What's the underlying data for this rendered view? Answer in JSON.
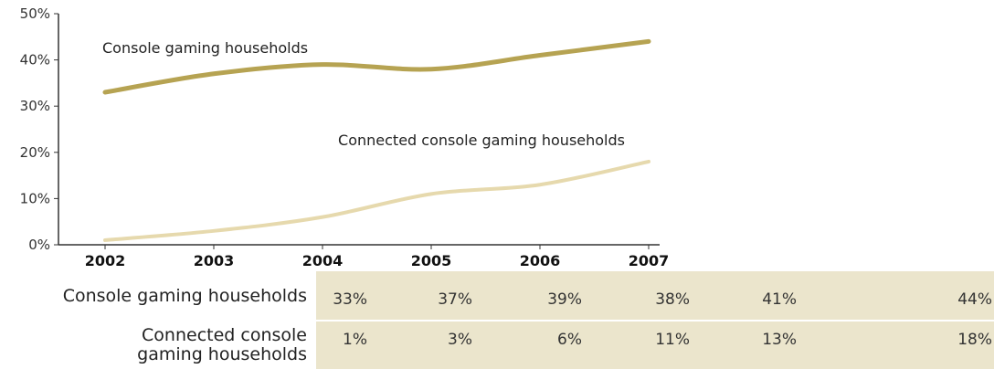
{
  "chart_data": {
    "type": "line",
    "categories": [
      "2002",
      "2003",
      "2004",
      "2005",
      "2006",
      "2007"
    ],
    "series": [
      {
        "name": "Console gaming households",
        "values": [
          33,
          37,
          39,
          38,
          41,
          44
        ],
        "color": "#b6a352"
      },
      {
        "name": "Connected console gaming households",
        "values": [
          1,
          3,
          6,
          11,
          13,
          18
        ],
        "color": "#e6d9ad"
      }
    ],
    "ylim": [
      0,
      50
    ],
    "yticks": [
      0,
      10,
      20,
      30,
      40,
      50
    ],
    "ytick_labels": [
      "0%",
      "10%",
      "20%",
      "30%",
      "40%",
      "50%"
    ],
    "grid": false,
    "table": {
      "row_labels": [
        [
          "Console gaming households"
        ],
        [
          "Connected console",
          "gaming households"
        ]
      ],
      "rows": [
        [
          "33%",
          "37%",
          "39%",
          "38%",
          "41%",
          "44%"
        ],
        [
          "1%",
          "3%",
          "6%",
          "11%",
          "13%",
          "18%"
        ]
      ]
    }
  }
}
